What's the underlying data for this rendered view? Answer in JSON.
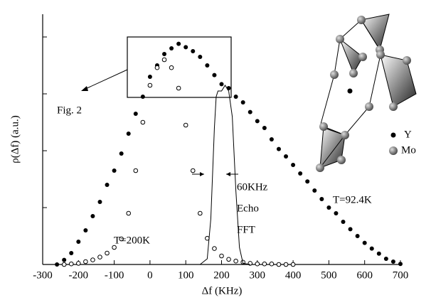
{
  "chart_data": {
    "type": "scatter",
    "xlabel": "Δf (KHz)",
    "ylabel": "ρ(Δf) (a.u.)",
    "xlim": [
      -300,
      700
    ],
    "xticks": [
      -300,
      -200,
      -100,
      0,
      100,
      200,
      300,
      400,
      500,
      600,
      700
    ],
    "ylim": [
      0,
      4.4
    ],
    "yticks": [
      0,
      1,
      2,
      3,
      4
    ],
    "series": [
      {
        "label": "T=92.4K",
        "marker": "filled",
        "color": "#000000",
        "x": [
          -260,
          -240,
          -220,
          -200,
          -180,
          -160,
          -140,
          -120,
          -100,
          -80,
          -60,
          -40,
          -20,
          0,
          20,
          40,
          60,
          80,
          100,
          120,
          140,
          160,
          180,
          200,
          220,
          240,
          260,
          280,
          300,
          320,
          340,
          360,
          380,
          400,
          420,
          440,
          460,
          480,
          500,
          520,
          540,
          560,
          580,
          600,
          620,
          640,
          660,
          680,
          700
        ],
        "values": [
          0.0,
          0.08,
          0.2,
          0.4,
          0.6,
          0.85,
          1.1,
          1.4,
          1.65,
          1.95,
          2.3,
          2.65,
          2.95,
          3.3,
          3.5,
          3.7,
          3.8,
          3.88,
          3.82,
          3.75,
          3.65,
          3.5,
          3.33,
          3.17,
          3.1,
          2.95,
          2.85,
          2.68,
          2.52,
          2.4,
          2.2,
          2.03,
          1.9,
          1.75,
          1.6,
          1.46,
          1.3,
          1.15,
          1.0,
          0.9,
          0.75,
          0.62,
          0.5,
          0.38,
          0.28,
          0.19,
          0.1,
          0.05,
          0.01
        ]
      },
      {
        "label": "T=200K",
        "marker": "open",
        "color": "#000000",
        "x": [
          -240,
          -220,
          -200,
          -180,
          -160,
          -140,
          -120,
          -100,
          -80,
          -60,
          -40,
          -20,
          0,
          20,
          40,
          60,
          80,
          100,
          120,
          140,
          160,
          180,
          200,
          220,
          240,
          260,
          280,
          300,
          320,
          340,
          360,
          380,
          400
        ],
        "values": [
          0.0,
          0.01,
          0.02,
          0.05,
          0.08,
          0.13,
          0.2,
          0.3,
          0.45,
          0.9,
          1.65,
          2.5,
          3.15,
          3.46,
          3.6,
          3.46,
          3.1,
          2.45,
          1.65,
          0.9,
          0.46,
          0.28,
          0.15,
          0.09,
          0.06,
          0.04,
          0.02,
          0.01,
          0.01,
          0.01,
          0.0,
          0.0,
          0.0
        ]
      },
      {
        "label_lines": [
          "60KHz",
          "Echo",
          "FFT"
        ],
        "marker": "line",
        "color": "#000000",
        "x": [
          140,
          160,
          170,
          180,
          185,
          190,
          200,
          210,
          220,
          230,
          240,
          250,
          260,
          280
        ],
        "values": [
          0.0,
          0.1,
          0.8,
          2.4,
          2.95,
          3.05,
          3.05,
          3.15,
          3.05,
          2.6,
          1.3,
          0.3,
          0.02,
          0.0
        ]
      }
    ],
    "annotations": {
      "figure_ref": "Fig. 2",
      "inset_legend": [
        "Y",
        "Mo"
      ]
    }
  }
}
